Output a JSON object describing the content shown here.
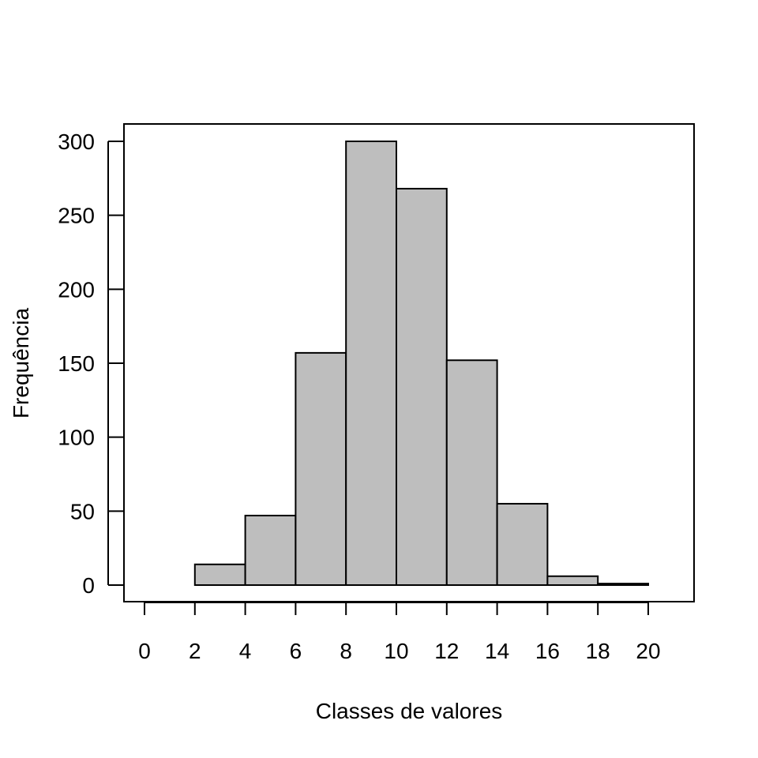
{
  "chart_data": {
    "type": "bar",
    "histogram": true,
    "title": "",
    "xlabel": "Classes de valores",
    "ylabel": "Frequência",
    "bins": [
      {
        "from": 2,
        "to": 4,
        "value": 14
      },
      {
        "from": 4,
        "to": 6,
        "value": 47
      },
      {
        "from": 6,
        "to": 8,
        "value": 157
      },
      {
        "from": 8,
        "to": 10,
        "value": 300
      },
      {
        "from": 10,
        "to": 12,
        "value": 268
      },
      {
        "from": 12,
        "to": 14,
        "value": 152
      },
      {
        "from": 14,
        "to": 16,
        "value": 55
      },
      {
        "from": 16,
        "to": 18,
        "value": 6
      },
      {
        "from": 18,
        "to": 20,
        "value": 1
      }
    ],
    "xlim": [
      0,
      20
    ],
    "ylim": [
      0,
      300
    ],
    "xticks": [
      "0",
      "2",
      "4",
      "6",
      "8",
      "10",
      "12",
      "14",
      "16",
      "18",
      "20"
    ],
    "yticks": [
      "0",
      "50",
      "100",
      "150",
      "200",
      "250",
      "300"
    ],
    "grid": false,
    "bar_color": "#bebebe",
    "edge_color": "#000000"
  }
}
